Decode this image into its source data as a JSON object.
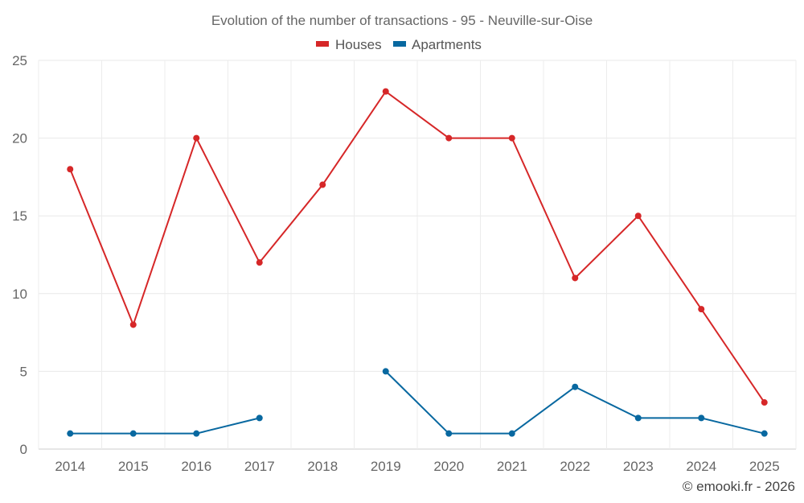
{
  "chart_data": {
    "type": "line",
    "title": "Evolution of the number of transactions - 95 - Neuville-sur-Oise",
    "categories": [
      "2014",
      "2015",
      "2016",
      "2017",
      "2018",
      "2019",
      "2020",
      "2021",
      "2022",
      "2023",
      "2024",
      "2025"
    ],
    "ylim": [
      0,
      25
    ],
    "yticks": [
      0,
      5,
      10,
      15,
      20,
      25
    ],
    "grid": true,
    "legend_position": "top",
    "series": [
      {
        "name": "Houses",
        "color": "#d62728",
        "values": [
          18,
          8,
          20,
          12,
          17,
          23,
          20,
          20,
          11,
          15,
          9,
          3
        ]
      },
      {
        "name": "Apartments",
        "color": "#0868a0",
        "values": [
          1,
          1,
          1,
          2,
          null,
          5,
          1,
          1,
          4,
          2,
          2,
          1
        ]
      }
    ]
  },
  "credit": "© emooki.fr - 2026"
}
